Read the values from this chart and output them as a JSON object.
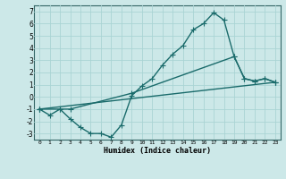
{
  "xlabel": "Humidex (Indice chaleur)",
  "background_color": "#cce8e8",
  "grid_color": "#aad4d4",
  "line_color": "#1a6b6b",
  "xlim": [
    -0.5,
    23.5
  ],
  "ylim": [
    -3.5,
    7.5
  ],
  "yticks": [
    -3,
    -2,
    -1,
    0,
    1,
    2,
    3,
    4,
    5,
    6,
    7
  ],
  "xticks": [
    0,
    1,
    2,
    3,
    4,
    5,
    6,
    7,
    8,
    9,
    10,
    11,
    12,
    13,
    14,
    15,
    16,
    17,
    18,
    19,
    20,
    21,
    22,
    23
  ],
  "curve1_x": [
    0,
    1,
    2,
    3,
    4,
    5,
    6,
    7,
    8,
    9,
    10,
    11,
    12,
    13,
    14,
    15,
    16,
    17,
    18,
    19,
    20,
    21,
    22,
    23
  ],
  "curve1_y": [
    -1.0,
    -1.5,
    -1.0,
    -1.8,
    -2.5,
    -3.0,
    -3.0,
    -3.3,
    -2.3,
    0.1,
    0.9,
    1.5,
    2.6,
    3.5,
    4.2,
    5.5,
    6.0,
    6.9,
    6.3,
    3.3,
    1.5,
    1.3,
    1.5,
    1.2
  ],
  "curve2_x": [
    0,
    2,
    3,
    9,
    19,
    20,
    21,
    22,
    23
  ],
  "curve2_y": [
    -1.0,
    -1.0,
    -1.0,
    0.3,
    3.3,
    1.5,
    1.3,
    1.5,
    1.2
  ],
  "curve3_x": [
    0,
    23
  ],
  "curve3_y": [
    -1.0,
    1.2
  ],
  "marker": "+",
  "markersize": 4,
  "linewidth": 1.0
}
